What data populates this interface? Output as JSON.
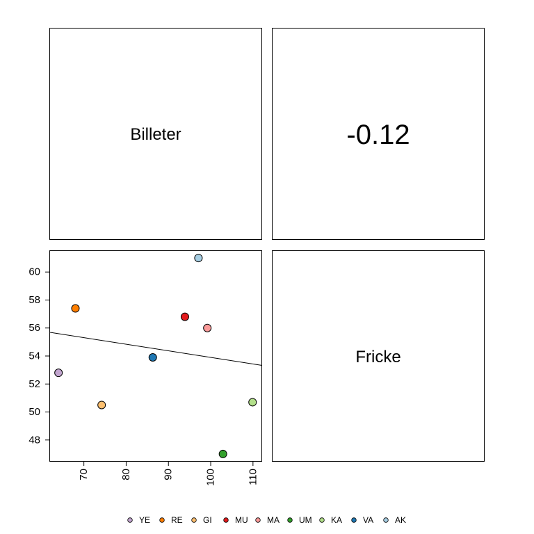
{
  "chart_data": {
    "type": "scatter",
    "variables": [
      "Billeter",
      "Fricke"
    ],
    "correlation_label": "-0.12",
    "xlim": [
      62,
      112
    ],
    "ylim": [
      46.5,
      61.5
    ],
    "x_ticks": [
      70,
      80,
      90,
      100,
      110
    ],
    "y_ticks": [
      48,
      50,
      52,
      54,
      56,
      58,
      60
    ],
    "fit_line": {
      "intercept": 58.6,
      "slope": -0.047
    },
    "points": [
      {
        "name": "YE",
        "x": 64.0,
        "y": 52.8,
        "color": "#c2a5cf"
      },
      {
        "name": "RE",
        "x": 68.0,
        "y": 57.4,
        "color": "#ff7f00"
      },
      {
        "name": "GI",
        "x": 74.2,
        "y": 50.5,
        "color": "#fdbf6f"
      },
      {
        "name": "MU",
        "x": 93.9,
        "y": 56.8,
        "color": "#e31a1c"
      },
      {
        "name": "MA",
        "x": 99.2,
        "y": 56.0,
        "color": "#fb9a99"
      },
      {
        "name": "UM",
        "x": 102.9,
        "y": 47.0,
        "color": "#33a02c"
      },
      {
        "name": "KA",
        "x": 109.9,
        "y": 50.7,
        "color": "#b2df8a"
      },
      {
        "name": "VA",
        "x": 86.3,
        "y": 53.9,
        "color": "#1f78b4"
      },
      {
        "name": "AK",
        "x": 97.1,
        "y": 61.0,
        "color": "#a6cee3"
      }
    ],
    "legend": {
      "position": "bottom",
      "items": [
        {
          "label": "YE",
          "color": "#c2a5cf"
        },
        {
          "label": "RE",
          "color": "#ff7f00"
        },
        {
          "label": "GI",
          "color": "#fdbf6f"
        },
        {
          "label": "MU",
          "color": "#e31a1c"
        },
        {
          "label": "MA",
          "color": "#fb9a99"
        },
        {
          "label": "UM",
          "color": "#33a02c"
        },
        {
          "label": "KA",
          "color": "#b2df8a"
        },
        {
          "label": "VA",
          "color": "#1f78b4"
        },
        {
          "label": "AK",
          "color": "#a6cee3"
        }
      ]
    }
  }
}
